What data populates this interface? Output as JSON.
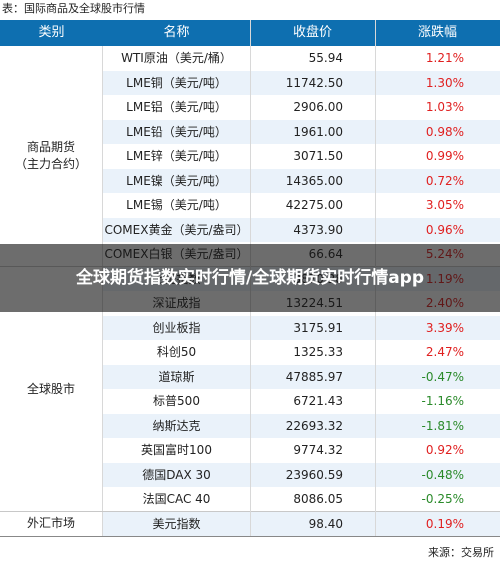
{
  "caption": "表：国际商品及全球股市行情",
  "header": {
    "category": "类别",
    "name": "名称",
    "close": "收盘价",
    "change": "涨跌幅"
  },
  "groups": [
    {
      "label": "商品期货\n（主力合约）"
    },
    {
      "label": "全球股市"
    },
    {
      "label": "外汇市场"
    }
  ],
  "rows": [
    {
      "name": "WTI原油（美元/桶）",
      "price": "55.94",
      "change": "1.21%",
      "dir": "up"
    },
    {
      "name": "LME铜（美元/吨）",
      "price": "11742.50",
      "change": "1.30%",
      "dir": "up"
    },
    {
      "name": "LME铝（美元/吨）",
      "price": "2906.00",
      "change": "1.03%",
      "dir": "up"
    },
    {
      "name": "LME铅（美元/吨）",
      "price": "1961.00",
      "change": "0.98%",
      "dir": "up"
    },
    {
      "name": "LME锌（美元/吨）",
      "price": "3071.50",
      "change": "0.99%",
      "dir": "up"
    },
    {
      "name": "LME镍（美元/吨）",
      "price": "14365.00",
      "change": "0.72%",
      "dir": "up"
    },
    {
      "name": "LME锡（美元/吨）",
      "price": "42275.00",
      "change": "3.05%",
      "dir": "up"
    },
    {
      "name": "COMEX黄金（美元/盎司）",
      "price": "4373.90",
      "change": "0.96%",
      "dir": "up"
    },
    {
      "name": "COMEX白银（美元/盎司）",
      "price": "66.64",
      "change": "5.24%",
      "dir": "up"
    },
    {
      "name": "上证指数",
      "price": "3870.28",
      "change": "1.19%",
      "dir": "up"
    },
    {
      "name": "深证成指",
      "price": "13224.51",
      "change": "2.40%",
      "dir": "up"
    },
    {
      "name": "创业板指",
      "price": "3175.91",
      "change": "3.39%",
      "dir": "up"
    },
    {
      "name": "科创50",
      "price": "1325.33",
      "change": "2.47%",
      "dir": "up"
    },
    {
      "name": "道琼斯",
      "price": "47885.97",
      "change": "-0.47%",
      "dir": "down"
    },
    {
      "name": "标普500",
      "price": "6721.43",
      "change": "-1.16%",
      "dir": "down"
    },
    {
      "name": "纳斯达克",
      "price": "22693.32",
      "change": "-1.81%",
      "dir": "down"
    },
    {
      "name": "英国富时100",
      "price": "9774.32",
      "change": "0.92%",
      "dir": "up"
    },
    {
      "name": "德国DAX 30",
      "price": "23960.59",
      "change": "-0.48%",
      "dir": "down"
    },
    {
      "name": "法国CAC 40",
      "price": "8086.05",
      "change": "-0.25%",
      "dir": "down"
    },
    {
      "name": "美元指数",
      "price": "98.40",
      "change": "0.19%",
      "dir": "up"
    }
  ],
  "overlay": {
    "title": "全球期货指数实时行情/全球期货实时行情app"
  },
  "source": "来源：交易所",
  "colors": {
    "header_bg": "#0e6fb0",
    "alt_row": "#eaf2fa",
    "up": "#e02020",
    "down": "#2a8a2a"
  }
}
